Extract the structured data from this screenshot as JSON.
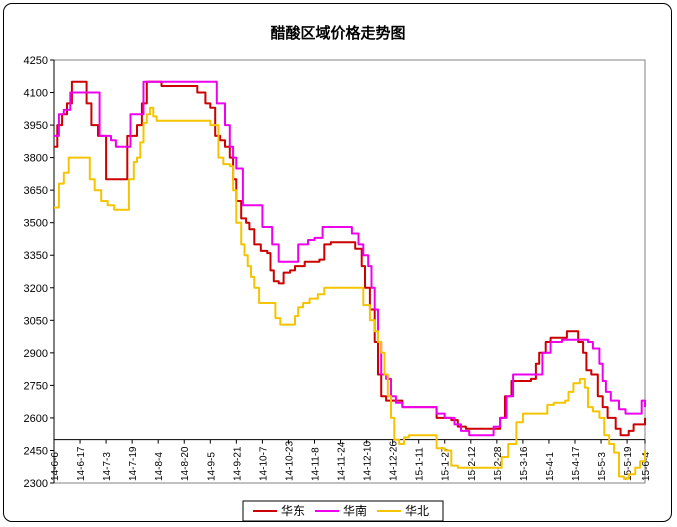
{
  "chart_data": {
    "type": "line",
    "title": "醋酸区域价格走势图",
    "xlabel": "",
    "ylabel": "",
    "ylim": [
      2300,
      4250
    ],
    "y_ticks": [
      2300,
      2450,
      2600,
      2750,
      2900,
      3050,
      3200,
      3350,
      3500,
      3650,
      3800,
      3950,
      4100,
      4250
    ],
    "x_ticks": [
      "14-6-6",
      "14-6-17",
      "14-7-3",
      "14-7-19",
      "14-8-4",
      "14-8-20",
      "14-9-5",
      "14-9-21",
      "14-10-7",
      "14-10-23",
      "14-11-8",
      "14-11-24",
      "14-12-10",
      "14-12-26",
      "15-1-11",
      "15-1-27",
      "15-2-12",
      "15-2-28",
      "15-3-16",
      "15-4-1",
      "15-4-17",
      "15-5-3",
      "15-5-19",
      "15-6-4"
    ],
    "n_points": 364,
    "grid": false,
    "legend_position": "bottom",
    "series": [
      {
        "name": "华东",
        "color": "#cc0000",
        "knots": [
          [
            0,
            3850
          ],
          [
            2,
            3950
          ],
          [
            5,
            4000
          ],
          [
            8,
            4050
          ],
          [
            11,
            4150
          ],
          [
            18,
            4150
          ],
          [
            20,
            4050
          ],
          [
            23,
            3950
          ],
          [
            27,
            3900
          ],
          [
            32,
            3700
          ],
          [
            42,
            3700
          ],
          [
            45,
            3900
          ],
          [
            51,
            3950
          ],
          [
            54,
            4050
          ],
          [
            57,
            4150
          ],
          [
            64,
            4150
          ],
          [
            66,
            4130
          ],
          [
            85,
            4130
          ],
          [
            88,
            4100
          ],
          [
            93,
            4050
          ],
          [
            96,
            4030
          ],
          [
            99,
            3900
          ],
          [
            102,
            3880
          ],
          [
            105,
            3850
          ],
          [
            108,
            3800
          ],
          [
            110,
            3700
          ],
          [
            112,
            3600
          ],
          [
            115,
            3520
          ],
          [
            118,
            3500
          ],
          [
            120,
            3470
          ],
          [
            123,
            3400
          ],
          [
            127,
            3370
          ],
          [
            131,
            3360
          ],
          [
            133,
            3280
          ],
          [
            135,
            3230
          ],
          [
            138,
            3220
          ],
          [
            141,
            3270
          ],
          [
            145,
            3280
          ],
          [
            148,
            3300
          ],
          [
            154,
            3320
          ],
          [
            163,
            3330
          ],
          [
            166,
            3400
          ],
          [
            170,
            3410
          ],
          [
            182,
            3410
          ],
          [
            185,
            3380
          ],
          [
            189,
            3300
          ],
          [
            191,
            3200
          ],
          [
            194,
            3100
          ],
          [
            197,
            2950
          ],
          [
            199,
            2800
          ],
          [
            201,
            2700
          ],
          [
            204,
            2680
          ],
          [
            210,
            2680
          ],
          [
            214,
            2650
          ],
          [
            232,
            2650
          ],
          [
            235,
            2600
          ],
          [
            244,
            2590
          ],
          [
            248,
            2560
          ],
          [
            253,
            2550
          ],
          [
            270,
            2550
          ],
          [
            274,
            2600
          ],
          [
            277,
            2700
          ],
          [
            281,
            2770
          ],
          [
            293,
            2780
          ],
          [
            296,
            2850
          ],
          [
            298,
            2900
          ],
          [
            302,
            2950
          ],
          [
            305,
            2970
          ],
          [
            313,
            2970
          ],
          [
            315,
            3000
          ],
          [
            322,
            2950
          ],
          [
            325,
            2900
          ],
          [
            327,
            2820
          ],
          [
            330,
            2800
          ],
          [
            334,
            2700
          ],
          [
            337,
            2650
          ],
          [
            340,
            2600
          ],
          [
            345,
            2550
          ],
          [
            348,
            2520
          ],
          [
            353,
            2540
          ],
          [
            356,
            2570
          ],
          [
            363,
            2600
          ]
        ]
      },
      {
        "name": "华南",
        "color": "#ee00ee",
        "knots": [
          [
            0,
            3900
          ],
          [
            3,
            4000
          ],
          [
            6,
            4020
          ],
          [
            10,
            4100
          ],
          [
            25,
            4100
          ],
          [
            28,
            3900
          ],
          [
            35,
            3880
          ],
          [
            38,
            3850
          ],
          [
            44,
            3850
          ],
          [
            47,
            4000
          ],
          [
            52,
            4000
          ],
          [
            55,
            4150
          ],
          [
            95,
            4150
          ],
          [
            100,
            4050
          ],
          [
            105,
            3950
          ],
          [
            108,
            3850
          ],
          [
            110,
            3800
          ],
          [
            112,
            3750
          ],
          [
            116,
            3580
          ],
          [
            125,
            3580
          ],
          [
            128,
            3480
          ],
          [
            134,
            3400
          ],
          [
            138,
            3320
          ],
          [
            147,
            3320
          ],
          [
            150,
            3400
          ],
          [
            156,
            3420
          ],
          [
            160,
            3430
          ],
          [
            165,
            3480
          ],
          [
            175,
            3480
          ],
          [
            180,
            3480
          ],
          [
            183,
            3450
          ],
          [
            187,
            3400
          ],
          [
            190,
            3350
          ],
          [
            193,
            3300
          ],
          [
            195,
            3200
          ],
          [
            197,
            3100
          ],
          [
            199,
            2950
          ],
          [
            201,
            2800
          ],
          [
            204,
            2780
          ],
          [
            207,
            2700
          ],
          [
            210,
            2670
          ],
          [
            214,
            2650
          ],
          [
            232,
            2650
          ],
          [
            235,
            2620
          ],
          [
            240,
            2600
          ],
          [
            246,
            2570
          ],
          [
            250,
            2540
          ],
          [
            255,
            2520
          ],
          [
            266,
            2520
          ],
          [
            270,
            2560
          ],
          [
            274,
            2600
          ],
          [
            278,
            2700
          ],
          [
            282,
            2800
          ],
          [
            296,
            2800
          ],
          [
            300,
            2900
          ],
          [
            305,
            2950
          ],
          [
            309,
            2950
          ],
          [
            312,
            2960
          ],
          [
            325,
            2960
          ],
          [
            328,
            2950
          ],
          [
            331,
            2920
          ],
          [
            335,
            2850
          ],
          [
            337,
            2770
          ],
          [
            339,
            2720
          ],
          [
            342,
            2680
          ],
          [
            347,
            2640
          ],
          [
            351,
            2620
          ],
          [
            359,
            2620
          ],
          [
            361,
            2680
          ],
          [
            363,
            2650
          ]
        ]
      },
      {
        "name": "华北",
        "color": "#f5c400",
        "knots": [
          [
            0,
            3570
          ],
          [
            3,
            3680
          ],
          [
            6,
            3730
          ],
          [
            9,
            3800
          ],
          [
            20,
            3800
          ],
          [
            22,
            3700
          ],
          [
            25,
            3650
          ],
          [
            29,
            3600
          ],
          [
            33,
            3580
          ],
          [
            37,
            3560
          ],
          [
            43,
            3560
          ],
          [
            46,
            3700
          ],
          [
            49,
            3780
          ],
          [
            51,
            3800
          ],
          [
            53,
            3870
          ],
          [
            55,
            3960
          ],
          [
            57,
            4000
          ],
          [
            59,
            4030
          ],
          [
            61,
            3990
          ],
          [
            63,
            3970
          ],
          [
            92,
            3970
          ],
          [
            96,
            3950
          ],
          [
            101,
            3800
          ],
          [
            104,
            3770
          ],
          [
            108,
            3760
          ],
          [
            110,
            3650
          ],
          [
            112,
            3500
          ],
          [
            115,
            3400
          ],
          [
            117,
            3350
          ],
          [
            119,
            3300
          ],
          [
            121,
            3250
          ],
          [
            123,
            3200
          ],
          [
            126,
            3130
          ],
          [
            133,
            3130
          ],
          [
            136,
            3060
          ],
          [
            139,
            3030
          ],
          [
            145,
            3030
          ],
          [
            148,
            3070
          ],
          [
            150,
            3110
          ],
          [
            153,
            3130
          ],
          [
            157,
            3150
          ],
          [
            162,
            3170
          ],
          [
            166,
            3200
          ],
          [
            185,
            3200
          ],
          [
            190,
            3120
          ],
          [
            194,
            3050
          ],
          [
            197,
            3000
          ],
          [
            199,
            2950
          ],
          [
            201,
            2900
          ],
          [
            203,
            2800
          ],
          [
            205,
            2700
          ],
          [
            207,
            2600
          ],
          [
            209,
            2500
          ],
          [
            212,
            2480
          ],
          [
            215,
            2510
          ],
          [
            218,
            2520
          ],
          [
            232,
            2520
          ],
          [
            235,
            2460
          ],
          [
            240,
            2450
          ],
          [
            244,
            2380
          ],
          [
            248,
            2370
          ],
          [
            272,
            2370
          ],
          [
            275,
            2420
          ],
          [
            279,
            2480
          ],
          [
            284,
            2580
          ],
          [
            288,
            2620
          ],
          [
            300,
            2620
          ],
          [
            303,
            2660
          ],
          [
            307,
            2670
          ],
          [
            314,
            2680
          ],
          [
            316,
            2720
          ],
          [
            319,
            2760
          ],
          [
            323,
            2780
          ],
          [
            326,
            2740
          ],
          [
            328,
            2650
          ],
          [
            331,
            2630
          ],
          [
            335,
            2600
          ],
          [
            338,
            2520
          ],
          [
            341,
            2480
          ],
          [
            344,
            2440
          ],
          [
            347,
            2330
          ],
          [
            350,
            2320
          ],
          [
            353,
            2340
          ],
          [
            357,
            2370
          ],
          [
            360,
            2400
          ],
          [
            363,
            2450
          ]
        ]
      }
    ]
  }
}
